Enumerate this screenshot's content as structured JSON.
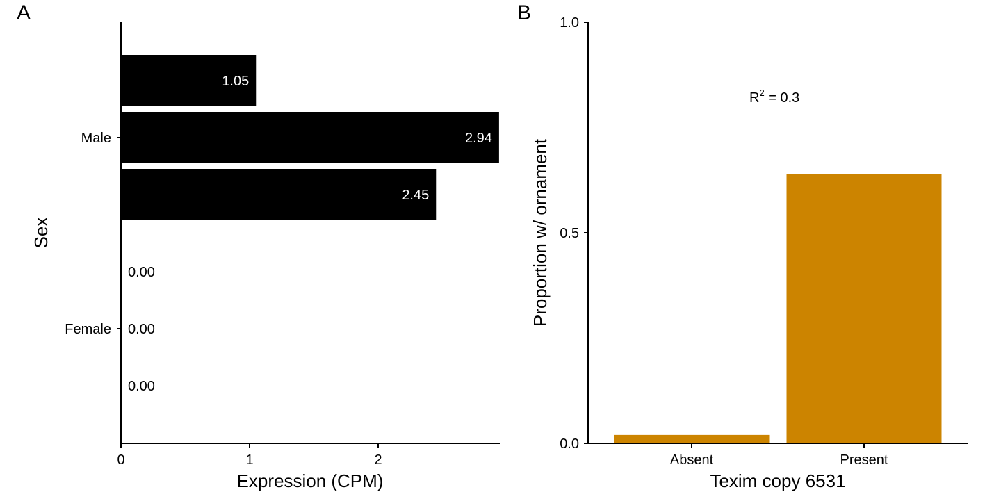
{
  "chart_data": [
    {
      "panel": "A",
      "type": "bar",
      "orientation": "horizontal",
      "xlabel": "Expression (CPM)",
      "ylabel": "Sex",
      "xlim": [
        0,
        2.94
      ],
      "xticks": [
        "0",
        "1",
        "2"
      ],
      "categories": [
        "Male",
        "Female"
      ],
      "bar_color": "#000000",
      "groups": [
        {
          "category": "Male",
          "values": [
            1.05,
            2.94,
            2.45
          ],
          "labels": [
            "1.05",
            "2.94",
            "2.45"
          ]
        },
        {
          "category": "Female",
          "values": [
            0.0,
            0.0,
            0.0
          ],
          "labels": [
            "0.00",
            "0.00",
            "0.00"
          ]
        }
      ],
      "grid": false
    },
    {
      "panel": "B",
      "type": "bar",
      "xlabel": "Texim copy 6531",
      "ylabel": "Proportion w/ ornament",
      "ylim": [
        0,
        1.0
      ],
      "yticks": [
        "0.0",
        "0.5",
        "1.0"
      ],
      "categories": [
        "Absent",
        "Present"
      ],
      "values": [
        0.02,
        0.64
      ],
      "bar_color": "#CC8400",
      "annotation": {
        "base": "R",
        "superscript": "2",
        "rest": " = 0.3"
      },
      "grid": false
    }
  ]
}
